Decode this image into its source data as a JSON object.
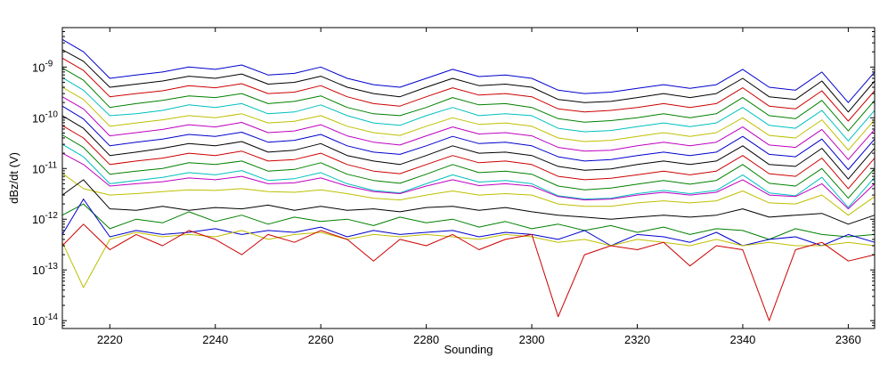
{
  "chart_data": {
    "type": "line",
    "title": "",
    "xlabel": "Sounding",
    "ylabel": "dBz/dt (V)",
    "y_scale": "log",
    "xlim": [
      2211,
      2365
    ],
    "ylim": [
      7e-15,
      6e-09
    ],
    "grid": false,
    "legend": "none",
    "x_ticks": [
      2220,
      2240,
      2260,
      2280,
      2300,
      2320,
      2340,
      2360
    ],
    "x_tick_labels": [
      "2220",
      "2240",
      "2260",
      "2280",
      "2300",
      "2320",
      "2340",
      "2360"
    ],
    "y_ticks": [
      1e-14,
      1e-13,
      1e-12,
      1e-11,
      1e-10,
      1e-09
    ],
    "y_tick_labels": [
      {
        "base": "10",
        "exp": "-14"
      },
      {
        "base": "10",
        "exp": "-13"
      },
      {
        "base": "10",
        "exp": "-12"
      },
      {
        "base": "10",
        "exp": "-11"
      },
      {
        "base": "10",
        "exp": "-10"
      },
      {
        "base": "10",
        "exp": "-9"
      }
    ],
    "x": [
      2211,
      2215,
      2220,
      2225,
      2230,
      2235,
      2240,
      2245,
      2250,
      2255,
      2260,
      2265,
      2270,
      2275,
      2280,
      2285,
      2290,
      2295,
      2300,
      2305,
      2310,
      2315,
      2320,
      2325,
      2330,
      2335,
      2340,
      2345,
      2350,
      2355,
      2360,
      2365
    ],
    "series": [
      {
        "color": "#0000cc",
        "values": [
          3.5e-09,
          2e-09,
          6e-10,
          7e-10,
          8e-10,
          1e-09,
          9e-10,
          1.1e-09,
          7e-10,
          7.5e-10,
          1e-09,
          6e-10,
          4.5e-10,
          4e-10,
          6e-10,
          9e-10,
          6.5e-10,
          7e-10,
          6e-10,
          3.5e-10,
          3e-10,
          3.2e-10,
          3.8e-10,
          4.5e-10,
          3.8e-10,
          4.5e-10,
          9e-10,
          4e-10,
          3.5e-10,
          8e-10,
          2e-10,
          8e-10
        ]
      },
      {
        "color": "#000000",
        "values": [
          2.2e-09,
          1.3e-09,
          4e-10,
          4.6e-10,
          5.3e-10,
          6.6e-10,
          6e-10,
          7.3e-10,
          4.6e-10,
          5e-10,
          6.6e-10,
          4e-10,
          3e-10,
          2.6e-10,
          4e-10,
          6e-10,
          4.3e-10,
          4.6e-10,
          4e-10,
          2.3e-10,
          2e-10,
          2.1e-10,
          2.5e-10,
          3e-10,
          2.5e-10,
          3e-10,
          6e-10,
          2.6e-10,
          2.3e-10,
          5.3e-10,
          1.3e-10,
          5.3e-10
        ]
      },
      {
        "color": "#cc0000",
        "values": [
          1.5e-09,
          8.6e-10,
          2.6e-10,
          3e-10,
          3.4e-10,
          4.3e-10,
          3.9e-10,
          4.7e-10,
          3e-10,
          3.2e-10,
          4.3e-10,
          2.6e-10,
          1.9e-10,
          1.7e-10,
          2.6e-10,
          3.9e-10,
          2.8e-10,
          3e-10,
          2.6e-10,
          1.5e-10,
          1.3e-10,
          1.4e-10,
          1.6e-10,
          1.9e-10,
          1.6e-10,
          1.9e-10,
          3.9e-10,
          1.7e-10,
          1.5e-10,
          3.4e-10,
          8.6e-11,
          3.4e-10
        ]
      },
      {
        "color": "#008000",
        "values": [
          9.6e-10,
          5.5e-10,
          1.6e-10,
          1.9e-10,
          2.2e-10,
          2.7e-10,
          2.5e-10,
          3e-10,
          1.9e-10,
          2.1e-10,
          2.7e-10,
          1.6e-10,
          1.2e-10,
          1.1e-10,
          1.6e-10,
          2.5e-10,
          1.8e-10,
          1.9e-10,
          1.6e-10,
          9.6e-11,
          8.2e-11,
          8.8e-11,
          1e-10,
          1.2e-10,
          1e-10,
          1.2e-10,
          2.5e-10,
          1.1e-10,
          9.6e-11,
          2.2e-10,
          5.5e-11,
          2.2e-10
        ]
      },
      {
        "color": "#00bfbf",
        "values": [
          6.2e-10,
          3.5e-10,
          1.1e-10,
          1.2e-10,
          1.4e-10,
          1.8e-10,
          1.6e-10,
          1.9e-10,
          1.2e-10,
          1.3e-10,
          1.8e-10,
          1.1e-10,
          7.9e-11,
          7.1e-11,
          1.1e-10,
          1.6e-10,
          1.1e-10,
          1.2e-10,
          1.1e-10,
          6.2e-11,
          5.3e-11,
          5.6e-11,
          6.7e-11,
          7.9e-11,
          6.7e-11,
          7.9e-11,
          1.6e-10,
          7.1e-11,
          6.2e-11,
          1.4e-10,
          3.5e-11,
          1.4e-10
        ]
      },
      {
        "color": "#bfbf00",
        "values": [
          4e-10,
          2.3e-10,
          6.8e-11,
          7.9e-11,
          9.1e-11,
          1.1e-10,
          1e-10,
          1.2e-10,
          7.9e-11,
          8.5e-11,
          1.1e-10,
          6.8e-11,
          5.1e-11,
          4.5e-11,
          6.8e-11,
          1e-10,
          7.4e-11,
          7.9e-11,
          6.8e-11,
          4e-11,
          3.4e-11,
          3.6e-11,
          4.3e-11,
          5.1e-11,
          4.3e-11,
          5.1e-11,
          1e-10,
          4.5e-11,
          4e-11,
          9.1e-11,
          2.3e-11,
          9.1e-11
        ]
      },
      {
        "color": "#bf00bf",
        "values": [
          2.6e-10,
          1.5e-10,
          4.4e-11,
          5.1e-11,
          5.9e-11,
          7.3e-11,
          6.6e-11,
          8.1e-11,
          5.1e-11,
          5.5e-11,
          7.3e-11,
          4.4e-11,
          3.3e-11,
          2.9e-11,
          4.4e-11,
          6.6e-11,
          4.8e-11,
          5.1e-11,
          4.4e-11,
          2.6e-11,
          2.2e-11,
          2.3e-11,
          2.8e-11,
          3.3e-11,
          2.8e-11,
          3.3e-11,
          6.6e-11,
          2.9e-11,
          2.6e-11,
          5.9e-11,
          1.5e-11,
          5.9e-11
        ]
      },
      {
        "color": "#0000cc",
        "values": [
          1.7e-10,
          9.5e-11,
          2.8e-11,
          3.3e-11,
          3.8e-11,
          4.7e-11,
          4.3e-11,
          5.2e-11,
          3.3e-11,
          3.6e-11,
          4.7e-11,
          2.8e-11,
          2.1e-11,
          1.9e-11,
          2.8e-11,
          4.3e-11,
          3.1e-11,
          3.3e-11,
          2.8e-11,
          1.7e-11,
          1.4e-11,
          1.5e-11,
          1.8e-11,
          2.1e-11,
          1.8e-11,
          2.1e-11,
          4.3e-11,
          1.9e-11,
          1.7e-11,
          3.8e-11,
          9.5e-12,
          3.8e-11
        ]
      },
      {
        "color": "#000000",
        "values": [
          1.1e-10,
          6.2e-11,
          1.8e-11,
          2.1e-11,
          2.5e-11,
          3.1e-11,
          2.8e-11,
          3.4e-11,
          2.1e-11,
          2.3e-11,
          3.1e-11,
          1.8e-11,
          1.4e-11,
          1.2e-11,
          1.8e-11,
          2.8e-11,
          2e-11,
          2.1e-11,
          1.8e-11,
          1.1e-11,
          9.2e-12,
          9.8e-12,
          1.2e-11,
          1.4e-11,
          1.2e-11,
          1.4e-11,
          2.8e-11,
          1.2e-11,
          1.1e-11,
          2.5e-11,
          6.2e-12,
          2.5e-11
        ]
      },
      {
        "color": "#cc0000",
        "values": [
          7e-11,
          4e-11,
          1.2e-11,
          1.4e-11,
          1.6e-11,
          2e-11,
          1.8e-11,
          2.2e-11,
          1.4e-11,
          1.5e-11,
          2e-11,
          1.2e-11,
          8.9e-12,
          7.9e-12,
          1.2e-11,
          1.8e-11,
          1.3e-11,
          1.4e-11,
          1.2e-11,
          7e-12,
          6e-12,
          6.4e-12,
          7.5e-12,
          8.9e-12,
          7.5e-12,
          8.9e-12,
          1.8e-11,
          7.9e-12,
          7e-12,
          1.6e-11,
          4e-12,
          1.6e-11
        ]
      },
      {
        "color": "#008000",
        "values": [
          4.6e-11,
          2.6e-11,
          7.7e-12,
          8.9e-12,
          1e-11,
          1.3e-11,
          1.2e-11,
          1.4e-11,
          8.9e-12,
          9.6e-12,
          1.3e-11,
          7.7e-12,
          5.8e-12,
          5.1e-12,
          7.7e-12,
          1.2e-11,
          8.3e-12,
          8.9e-12,
          7.7e-12,
          4.5e-12,
          3.8e-12,
          4.1e-12,
          4.9e-12,
          5.8e-12,
          4.9e-12,
          5.8e-12,
          1.2e-11,
          5.1e-12,
          4.5e-12,
          1e-11,
          2.6e-12,
          1e-11
        ]
      },
      {
        "color": "#00bfbf",
        "values": [
          3e-11,
          1.7e-11,
          5e-12,
          5.8e-12,
          6.7e-12,
          8.3e-12,
          7.5e-12,
          9.1e-12,
          5.8e-12,
          6.3e-12,
          8.3e-12,
          5e-12,
          3.7e-12,
          3.3e-12,
          5e-12,
          7.5e-12,
          5.4e-12,
          5.8e-12,
          5e-12,
          2.9e-12,
          2.5e-12,
          2.6e-12,
          3.2e-12,
          3.7e-12,
          3.2e-12,
          3.7e-12,
          7.5e-12,
          3.3e-12,
          2.9e-12,
          6.7e-12,
          1.7e-12,
          6.7e-12
        ]
      },
      {
        "color": "#bf00bf",
        "values": [
          2e-11,
          1.2e-11,
          4.5e-12,
          5e-12,
          5.5e-12,
          6.5e-12,
          6e-12,
          7e-12,
          5e-12,
          5.2e-12,
          6.5e-12,
          4.5e-12,
          3.5e-12,
          3.2e-12,
          4.5e-12,
          6e-12,
          4.6e-12,
          5e-12,
          4.5e-12,
          2.8e-12,
          2.4e-12,
          2.5e-12,
          3e-12,
          3.4e-12,
          3e-12,
          3.4e-12,
          6e-12,
          3e-12,
          2.8e-12,
          5e-12,
          1.6e-12,
          5e-12
        ]
      },
      {
        "color": "#bfbf00",
        "values": [
          8e-12,
          4e-12,
          3e-12,
          3.2e-12,
          3.5e-12,
          3.8e-12,
          3.7e-12,
          4e-12,
          3.5e-12,
          3.4e-12,
          3.8e-12,
          3.2e-12,
          2.6e-12,
          2.4e-12,
          3e-12,
          3.6e-12,
          3e-12,
          3.2e-12,
          3e-12,
          2e-12,
          1.8e-12,
          1.8e-12,
          2.1e-12,
          2.3e-12,
          2.1e-12,
          2.3e-12,
          3.6e-12,
          2.1e-12,
          2e-12,
          3e-12,
          1.2e-12,
          2.8e-12
        ]
      },
      {
        "color": "#000000",
        "values": [
          3e-12,
          6e-12,
          1.6e-12,
          1.5e-12,
          1.8e-12,
          1.5e-12,
          1.7e-12,
          1.6e-12,
          1.9e-12,
          1.5e-12,
          1.8e-12,
          1.5e-12,
          1.6e-12,
          1.4e-12,
          1.7e-12,
          1.8e-12,
          1.5e-12,
          1.7e-12,
          1.4e-12,
          1.2e-12,
          1.1e-12,
          1e-12,
          1.1e-12,
          1.2e-12,
          1.1e-12,
          1.2e-12,
          1.6e-12,
          1.1e-12,
          1.2e-12,
          1.3e-12,
          8e-13,
          1.2e-12
        ]
      },
      {
        "color": "#008000",
        "values": [
          1.2e-12,
          2e-12,
          6.5e-13,
          1e-12,
          8.5e-13,
          1.4e-12,
          9e-13,
          1.2e-12,
          8e-13,
          1.1e-12,
          9e-13,
          1e-12,
          7.5e-13,
          1.1e-12,
          8.5e-13,
          1e-12,
          7e-13,
          9e-13,
          6.5e-13,
          8e-13,
          6e-13,
          7.5e-13,
          5.5e-13,
          7e-13,
          5e-13,
          6.5e-13,
          6e-13,
          4e-13,
          6.5e-13,
          5e-13,
          4.5e-13,
          5e-13
        ]
      },
      {
        "color": "#0000cc",
        "values": [
          5e-13,
          2.5e-12,
          4.5e-13,
          6e-13,
          5e-13,
          5.5e-13,
          6.5e-13,
          5e-13,
          6e-13,
          5.5e-13,
          7e-13,
          4.5e-13,
          6e-13,
          5e-13,
          5.5e-13,
          6e-13,
          4.5e-13,
          5.5e-13,
          5e-13,
          4e-13,
          6e-13,
          3e-13,
          5e-13,
          4.5e-13,
          3.5e-13,
          5.5e-13,
          3e-13,
          4e-13,
          4.5e-13,
          3e-13,
          5e-13,
          3.5e-13
        ]
      },
      {
        "color": "#bfbf00",
        "values": [
          3.5e-13,
          4.5e-14,
          4e-13,
          5.5e-13,
          4.5e-13,
          5e-13,
          4.5e-13,
          6e-13,
          4e-13,
          5e-13,
          5.5e-13,
          4e-13,
          5e-13,
          4.5e-13,
          5e-13,
          4.5e-13,
          4e-13,
          5e-13,
          4.5e-13,
          3.5e-13,
          4e-13,
          3e-13,
          4e-13,
          3.5e-13,
          3e-13,
          4e-13,
          3e-13,
          3.5e-13,
          3e-13,
          3e-13,
          3.5e-13,
          3e-13
        ]
      },
      {
        "color": "#cc0000",
        "values": [
          3e-13,
          8e-13,
          2.5e-13,
          5e-13,
          3e-13,
          6e-13,
          4e-13,
          2e-13,
          5e-13,
          3.5e-13,
          6e-13,
          4e-13,
          1.5e-13,
          4e-13,
          3e-13,
          5e-13,
          2.5e-13,
          4e-13,
          5e-13,
          1.2e-14,
          2e-13,
          3e-13,
          2.5e-13,
          3.5e-13,
          1.2e-13,
          3e-13,
          2.5e-13,
          1e-14,
          2.5e-13,
          3.5e-13,
          1.5e-13,
          2e-13
        ]
      }
    ]
  }
}
